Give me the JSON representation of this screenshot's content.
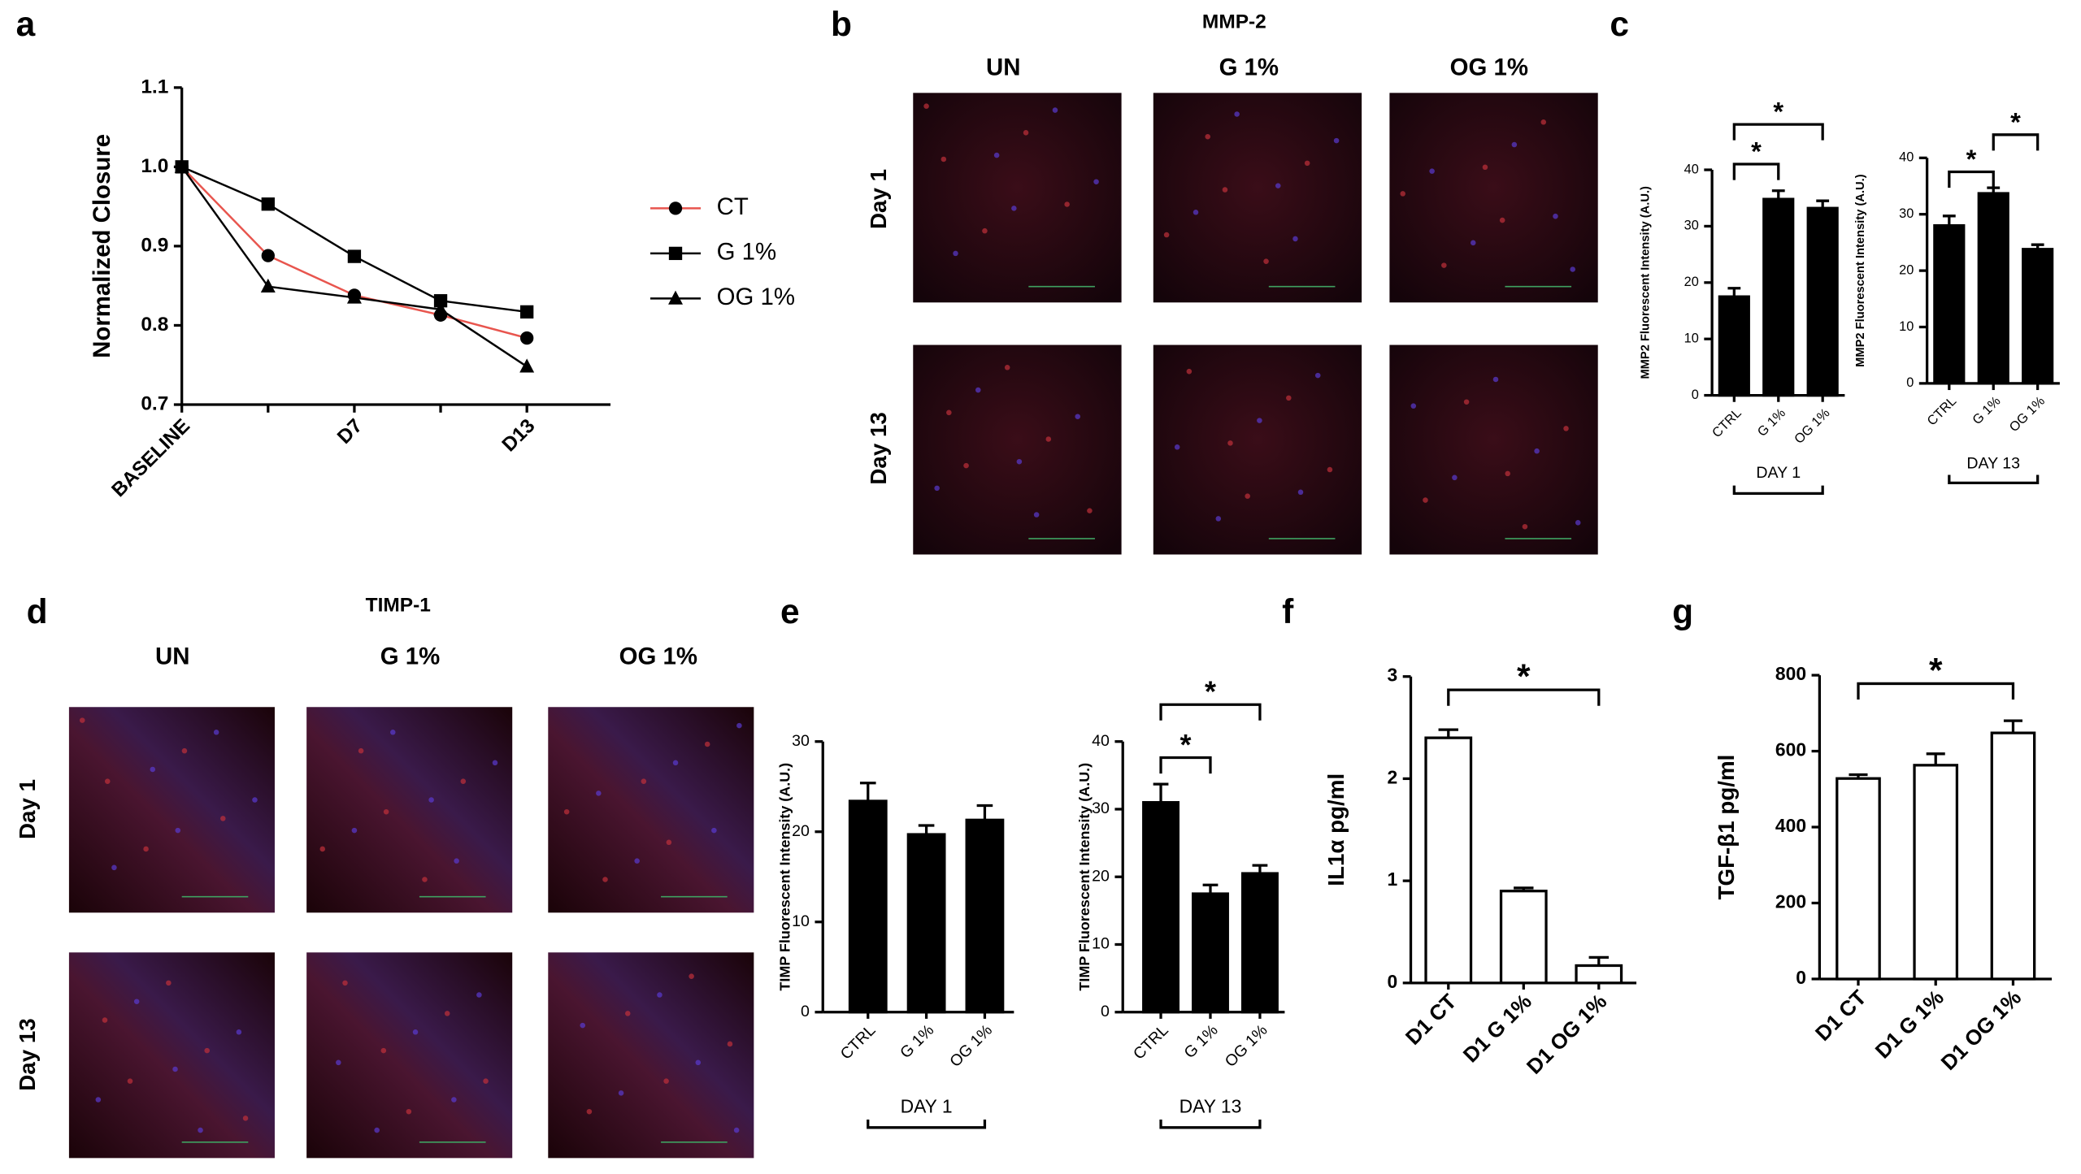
{
  "chart_data": [
    {
      "panel": "a",
      "type": "line",
      "ylabel": "Normalized Closure",
      "categories": [
        "BASELINE",
        null,
        "D7",
        null,
        "D13"
      ],
      "ylim": [
        0.7,
        1.1
      ],
      "yticks": [
        0.7,
        0.8,
        0.9,
        {
          "value": 1,
          "label": "1.0"
        },
        1.1
      ],
      "series": [
        {
          "name": "CT",
          "color": "#e8554e",
          "marker": "circle",
          "marker_color": "#000000",
          "values": [
            1.0,
            0.888,
            0.838,
            0.813,
            0.784
          ]
        },
        {
          "name": "G 1%",
          "color": "#000000",
          "marker": "square",
          "marker_color": "#000000",
          "values": [
            1.0,
            0.953,
            0.887,
            0.831,
            0.817
          ]
        },
        {
          "name": "OG 1%",
          "color": "#000000",
          "marker": "triangle",
          "marker_color": "#000000",
          "values": [
            1.0,
            0.849,
            0.835,
            0.82,
            0.748
          ]
        }
      ]
    },
    {
      "panel": "c",
      "type": "bar",
      "ylabel": "MMP2 Fluorescent Intensity (A.U.)",
      "group": "DAY 1",
      "categories": [
        "CTRL",
        "G 1%",
        "OG 1%"
      ],
      "values": [
        17.5,
        34.8,
        33.2
      ],
      "errors": [
        1.5,
        1.5,
        1.3
      ],
      "color": "#000000",
      "ylim": [
        0,
        40
      ],
      "yticks": [
        0,
        10,
        20,
        30,
        40
      ],
      "significance": [
        {
          "between": [
            0,
            1
          ],
          "label": "*"
        },
        {
          "between": [
            0,
            2
          ],
          "label": "*"
        }
      ]
    },
    {
      "type": "bar",
      "ylabel": "MMP2 Fluorescent Intensity (A.U.)",
      "group": "DAY 13",
      "categories": [
        "CTRL",
        "G 1%",
        "OG 1%"
      ],
      "values": [
        28,
        33.7,
        23.8
      ],
      "errors": [
        1.7,
        1.0,
        0.8
      ],
      "color": "#000000",
      "ylim": [
        0,
        40
      ],
      "yticks": [
        0,
        10,
        20,
        30,
        40
      ],
      "significance": [
        {
          "between": [
            0,
            1
          ],
          "label": "*"
        },
        {
          "between": [
            1,
            2
          ],
          "label": "*"
        }
      ]
    },
    {
      "panel": "e",
      "type": "bar",
      "ylabel": "TIMP Fluorescent Intensity (A.U.)",
      "group": "DAY 1",
      "categories": [
        "CTRL",
        "G 1%",
        "OG 1%"
      ],
      "values": [
        23.4,
        19.7,
        21.3
      ],
      "errors": [
        2.0,
        1.0,
        1.6
      ],
      "color": "#000000",
      "ylim": [
        0,
        30
      ],
      "yticks": [
        0,
        10,
        20,
        30
      ]
    },
    {
      "type": "bar",
      "ylabel": "TIMP Fluorescent Intensity (A.U.)",
      "group": "DAY 13",
      "categories": [
        "CTRL",
        "G 1%",
        "OG 1%"
      ],
      "values": [
        31,
        17.5,
        20.5
      ],
      "errors": [
        2.7,
        1.3,
        1.2
      ],
      "color": "#000000",
      "ylim": [
        0,
        40
      ],
      "yticks": [
        0,
        10,
        20,
        30,
        40
      ],
      "significance": [
        {
          "between": [
            0,
            1
          ],
          "label": "*"
        },
        {
          "between": [
            0,
            2
          ],
          "label": "*"
        }
      ]
    },
    {
      "panel": "f",
      "type": "bar",
      "ylabel": "IL1α pg/ml",
      "categories": [
        "D1 CT",
        "D1 G 1%",
        "D1 OG 1%"
      ],
      "values": [
        2.4,
        0.9,
        0.17
      ],
      "errors": [
        0.08,
        0.03,
        0.08
      ],
      "color": "#ffffff",
      "ylim": [
        0,
        3
      ],
      "yticks": [
        0,
        1,
        2,
        3
      ],
      "significance": [
        {
          "between": [
            0,
            2
          ],
          "label": "*"
        }
      ]
    },
    {
      "panel": "g",
      "type": "bar",
      "ylabel": "TGF-β1 pg/ml",
      "categories": [
        "D1 CT",
        "D1 G 1%",
        "D1 OG 1%"
      ],
      "values": [
        528,
        563,
        648
      ],
      "errors": [
        10,
        30,
        32
      ],
      "color": "#ffffff",
      "ylim": [
        0,
        800
      ],
      "yticks": [
        0,
        200,
        400,
        600,
        800
      ],
      "significance": [
        {
          "between": [
            0,
            2
          ],
          "label": "*"
        }
      ]
    }
  ],
  "image_panels": [
    {
      "panel": "b",
      "title": "MMP-2",
      "columns": [
        "UN",
        "G 1%",
        "OG 1%"
      ],
      "rows": [
        "Day 1",
        "Day 13"
      ]
    },
    {
      "panel": "d",
      "title": "TIMP-1",
      "columns": [
        "UN",
        "G 1%",
        "OG 1%"
      ],
      "rows": [
        "Day 1",
        "Day 13"
      ]
    }
  ]
}
